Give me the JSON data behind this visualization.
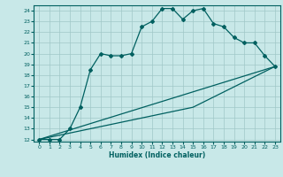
{
  "xlabel": "Humidex (Indice chaleur)",
  "background_color": "#c8e8e8",
  "grid_color": "#a0c8c8",
  "line_color": "#006060",
  "xlim": [
    -0.5,
    23.5
  ],
  "ylim": [
    11.8,
    24.5
  ],
  "xticks": [
    0,
    1,
    2,
    3,
    4,
    5,
    6,
    7,
    8,
    9,
    10,
    11,
    12,
    13,
    14,
    15,
    16,
    17,
    18,
    19,
    20,
    21,
    22,
    23
  ],
  "yticks": [
    12,
    13,
    14,
    15,
    16,
    17,
    18,
    19,
    20,
    21,
    22,
    23,
    24
  ],
  "series1_x": [
    0,
    1,
    2,
    3,
    4,
    5,
    6,
    7,
    8,
    9,
    10,
    11,
    12,
    13,
    14,
    15,
    16,
    17,
    18,
    19,
    20,
    21,
    22,
    23
  ],
  "series1_y": [
    12,
    12,
    12,
    13,
    15,
    18.5,
    20,
    19.8,
    19.8,
    20,
    22.5,
    23,
    24.2,
    24.2,
    23.2,
    24,
    24.2,
    22.8,
    22.5,
    21.5,
    21,
    21,
    19.8,
    18.8
  ],
  "series2_x": [
    0,
    23
  ],
  "series2_y": [
    12,
    18.8
  ],
  "series3_x": [
    0,
    15,
    23
  ],
  "series3_y": [
    12,
    15,
    18.8
  ]
}
